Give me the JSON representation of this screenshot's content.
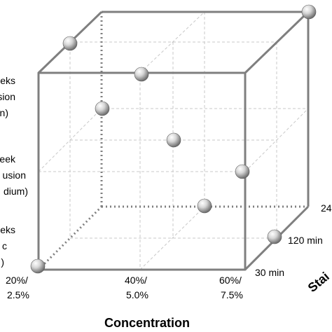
{
  "concentration_axis": {
    "title": "Concentration",
    "ticks": [
      {
        "line1": "20%/",
        "line2": "2.5%"
      },
      {
        "line1": "40%/",
        "line2": "5.0%"
      },
      {
        "line1": "60%/",
        "line2": "7.5%"
      }
    ]
  },
  "staining_axis": {
    "title_fragment": "Stai",
    "ticks": [
      "30 min",
      "120 min",
      "24"
    ]
  },
  "left_axis_fragments": [
    {
      "lines": [
        "eeks",
        "usion",
        "n)"
      ]
    },
    {
      "lines": [
        "eek",
        "usion",
        "dium)"
      ]
    },
    {
      "lines": [
        "eeks",
        "c",
        ")"
      ]
    }
  ],
  "colors": {
    "edge": "#7f7f7f",
    "grid": "#c8c8c8",
    "dotted": "#7f7f7f",
    "sphere_light": "#ffffff",
    "sphere_dark": "#7a7a7a"
  },
  "sphere_count": 10
}
